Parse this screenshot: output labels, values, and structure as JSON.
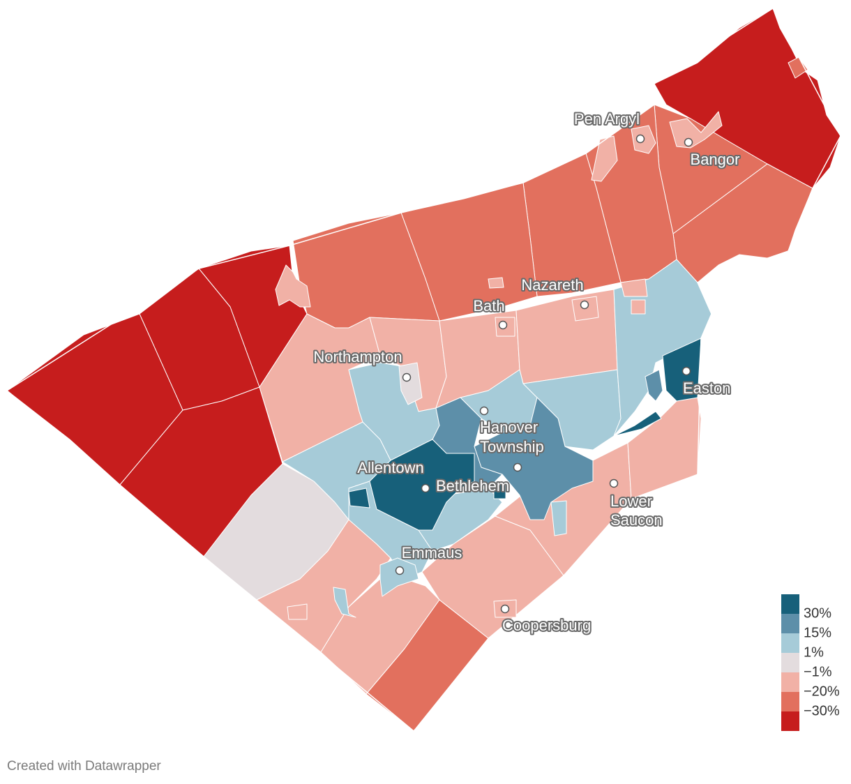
{
  "palette": {
    "dark_blue": "#17607a",
    "mid_blue": "#5d8fa9",
    "light_blue": "#a6cbd8",
    "neutral": "#e3dcde",
    "light_red": "#f1b1a6",
    "mid_red": "#e2705e",
    "dark_red": "#c61d1d"
  },
  "legend": {
    "items": [
      {
        "label": "30%",
        "color": "#17607a"
      },
      {
        "label": "15%",
        "color": "#5d8fa9"
      },
      {
        "label": "1%",
        "color": "#a6cbd8"
      },
      {
        "label": "−1%",
        "color": "#e3dcde"
      },
      {
        "label": "−20%",
        "color": "#f1b1a6"
      },
      {
        "label": "−30%",
        "color": "#e2705e"
      },
      {
        "label": "",
        "color": "#c61d1d"
      }
    ]
  },
  "cities": [
    {
      "name": "Pen Argyl"
    },
    {
      "name": "Bangor"
    },
    {
      "name": "Nazareth"
    },
    {
      "name": "Bath"
    },
    {
      "name": "Northampton"
    },
    {
      "name": "Easton"
    },
    {
      "name": "Hanover Township"
    },
    {
      "name": "Allentown"
    },
    {
      "name": "Bethlehem"
    },
    {
      "name": "Lower Saucon"
    },
    {
      "name": "Emmaus"
    },
    {
      "name": "Coopersburg"
    }
  ],
  "credit": "Created with Datawrapper"
}
